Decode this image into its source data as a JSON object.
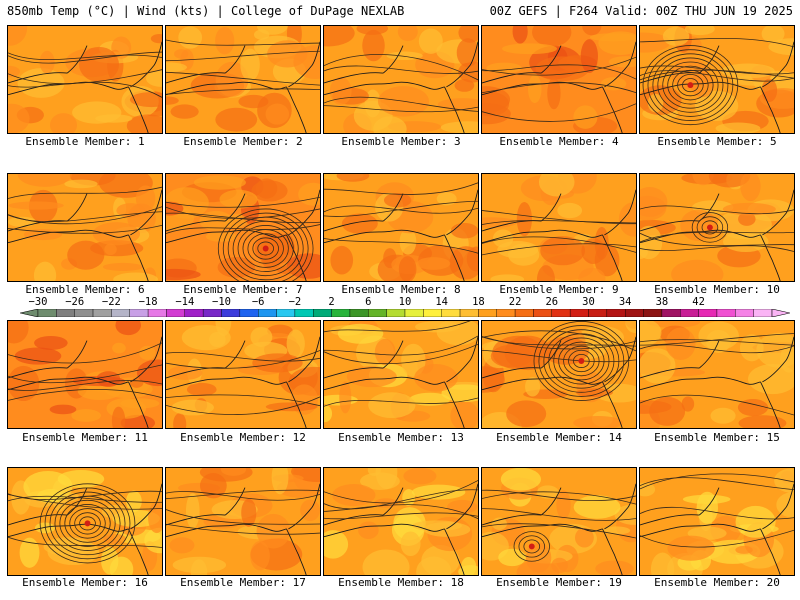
{
  "header": {
    "left": "850mb Temp (°C) | Wind (kts) | College of DuPage NEXLAB",
    "right": "00Z GEFS | F264 Valid: 00Z THU JUN 19 2025"
  },
  "members": [
    {
      "label": "Ensemble Member: 1",
      "tone": "mid",
      "storm": null
    },
    {
      "label": "Ensemble Member: 2",
      "tone": "mid",
      "storm": null
    },
    {
      "label": "Ensemble Member: 3",
      "tone": "mid",
      "storm": null
    },
    {
      "label": "Ensemble Member: 4",
      "tone": "hot",
      "storm": null
    },
    {
      "label": "Ensemble Member: 5",
      "tone": "mid",
      "storm": "strong"
    },
    {
      "label": "Ensemble Member: 6",
      "tone": "mid",
      "storm": null
    },
    {
      "label": "Ensemble Member: 7",
      "tone": "hot",
      "storm": "strong"
    },
    {
      "label": "Ensemble Member: 8",
      "tone": "mid",
      "storm": null
    },
    {
      "label": "Ensemble Member: 9",
      "tone": "mid",
      "storm": null
    },
    {
      "label": "Ensemble Member: 10",
      "tone": "mid",
      "storm": "weak"
    },
    {
      "label": "Ensemble Member: 11",
      "tone": "hot",
      "storm": null
    },
    {
      "label": "Ensemble Member: 12",
      "tone": "mid",
      "storm": null
    },
    {
      "label": "Ensemble Member: 13",
      "tone": "cool",
      "storm": null
    },
    {
      "label": "Ensemble Member: 14",
      "tone": "mid",
      "storm": "strong"
    },
    {
      "label": "Ensemble Member: 15",
      "tone": "mid",
      "storm": null
    },
    {
      "label": "Ensemble Member: 16",
      "tone": "cool",
      "storm": "strong"
    },
    {
      "label": "Ensemble Member: 17",
      "tone": "mid",
      "storm": null
    },
    {
      "label": "Ensemble Member: 18",
      "tone": "cool",
      "storm": null
    },
    {
      "label": "Ensemble Member: 19",
      "tone": "cool",
      "storm": "weak"
    },
    {
      "label": "Ensemble Member: 20",
      "tone": "cool",
      "storm": null
    }
  ],
  "colorbar": {
    "ticks": [
      "−30",
      "−26",
      "−22",
      "−18",
      "−14",
      "−10",
      "−6",
      "−2",
      "2",
      "6",
      "10",
      "14",
      "18",
      "22",
      "26",
      "30",
      "34",
      "38",
      "42"
    ],
    "colors": [
      "#6e8c6e",
      "#7f7f7f",
      "#8f8f8f",
      "#a0a0a0",
      "#b4b4c8",
      "#c8a0e6",
      "#e678e6",
      "#d23cd2",
      "#a020c8",
      "#7828c8",
      "#3c3cdc",
      "#1e64f0",
      "#1e96f0",
      "#28c8f0",
      "#00c8b4",
      "#00aa78",
      "#28b43c",
      "#3c9628",
      "#64b428",
      "#b4dc32",
      "#e6f03c",
      "#fff03c",
      "#ffdc3c",
      "#ffbe32",
      "#ffa01e",
      "#ff8c1e",
      "#f56e14",
      "#eb5014",
      "#e13214",
      "#d21e14",
      "#c81e14",
      "#b41414",
      "#a01414",
      "#8c1414",
      "#a01464",
      "#c81e96",
      "#e628b4",
      "#f050d2",
      "#f582e6",
      "#fab4f5"
    ]
  }
}
